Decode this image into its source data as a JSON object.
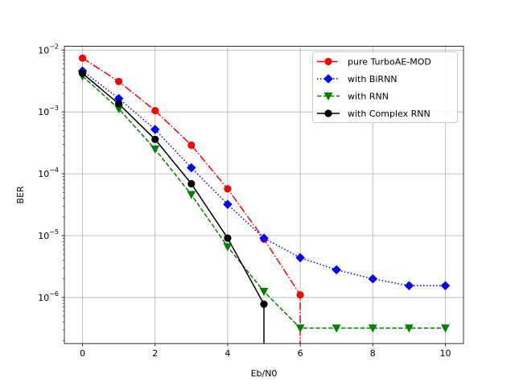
{
  "chart_data": {
    "type": "line",
    "xlabel": "Eb/N0",
    "ylabel": "BER",
    "xlim": [
      -0.5,
      10.5
    ],
    "ylim": [
      1.8e-07,
      0.0115
    ],
    "yscale": "log",
    "grid": true,
    "legend_position": "top-right",
    "x_ticks": [
      0,
      2,
      4,
      6,
      8,
      10
    ],
    "x_tick_labels": [
      "0",
      "2",
      "4",
      "6",
      "8",
      "10"
    ],
    "y_ticks": [
      1e-06,
      1e-05,
      0.0001,
      0.001,
      0.01
    ],
    "y_tick_labels": [
      {
        "base": "10",
        "exp": "−6"
      },
      {
        "base": "10",
        "exp": "−5"
      },
      {
        "base": "10",
        "exp": "−4"
      },
      {
        "base": "10",
        "exp": "−3"
      },
      {
        "base": "10",
        "exp": "−2"
      }
    ],
    "series": [
      {
        "name": "pure TurboAE-MOD",
        "color": "#ff0000",
        "marker": "circle",
        "line_style": "dashdot",
        "x": [
          0,
          1,
          2,
          3,
          4,
          5,
          6
        ],
        "y": [
          0.0074,
          0.0031,
          0.00105,
          0.00029,
          5.7e-05,
          8.8e-06,
          1.1e-06
        ],
        "drop_to_axis_at_end": true
      },
      {
        "name": "with BiRNN",
        "color": "#0000ff",
        "marker": "diamond",
        "line_style": "dotted",
        "x": [
          0,
          1,
          2,
          3,
          4,
          5,
          6,
          7,
          8,
          9,
          10
        ],
        "y": [
          0.0046,
          0.00165,
          0.00052,
          0.000125,
          3.2e-05,
          9.1e-06,
          4.4e-06,
          2.8e-06,
          2e-06,
          1.55e-06,
          1.55e-06
        ],
        "drop_to_axis_at_end": false
      },
      {
        "name": "with RNN",
        "color": "#008000",
        "marker": "triangle-down",
        "line_style": "dashed",
        "x": [
          0,
          1,
          2,
          3,
          4,
          5,
          6,
          7,
          8,
          9,
          10
        ],
        "y": [
          0.0038,
          0.00112,
          0.00025,
          4.6e-05,
          6.6e-06,
          1.25e-06,
          3.2e-07,
          3.2e-07,
          3.2e-07,
          3.2e-07,
          3.2e-07
        ],
        "drop_to_axis_at_end": false
      },
      {
        "name": "with Complex RNN",
        "color": "#000000",
        "marker": "circle",
        "line_style": "solid",
        "x": [
          0,
          1,
          2,
          3,
          4,
          5
        ],
        "y": [
          0.0042,
          0.00135,
          0.00036,
          6.9e-05,
          9.1e-06,
          7.8e-07
        ],
        "drop_to_axis_at_end": true
      }
    ]
  }
}
